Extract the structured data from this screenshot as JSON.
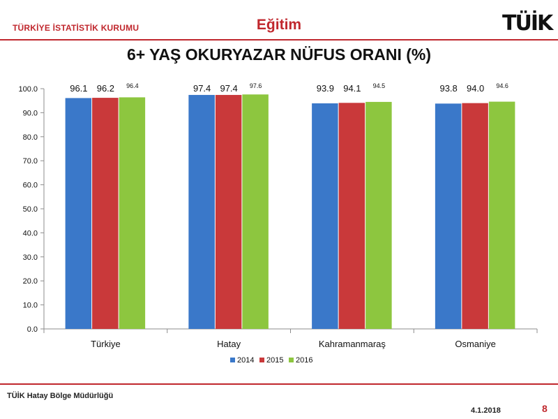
{
  "header": {
    "org_name": "TÜRKİYE İSTATİSTİK KURUMU",
    "section_title": "Eğitim",
    "logo_text": "TÜİK"
  },
  "footer": {
    "org": "TÜİK Hatay Bölge Müdürlüğü",
    "date": "4.1.2018",
    "page_number": "8"
  },
  "chart_data": {
    "type": "bar",
    "title": "6+ YAŞ OKURYAZAR NÜFUS ORANI (%)",
    "xlabel": "",
    "ylabel": "",
    "categories": [
      "Türkiye",
      "Hatay",
      "Kahramanmaraş",
      "Osmaniye"
    ],
    "series": [
      {
        "name": "2014",
        "values": [
          96.1,
          97.4,
          93.9,
          93.8
        ],
        "labels": [
          "96.1",
          "97.4",
          "93.9",
          "93.8"
        ],
        "color": "#3a78c9"
      },
      {
        "name": "2015",
        "values": [
          96.2,
          97.4,
          94.1,
          94.0
        ],
        "labels": [
          "96.2",
          "97.4",
          "94.1",
          "94.0"
        ],
        "color": "#c9393a"
      },
      {
        "name": "2016",
        "values": [
          96.4,
          97.6,
          94.5,
          94.6
        ],
        "labels": [
          "96.4",
          "97.6",
          "94.5",
          "94.6"
        ],
        "color": "#8dc63f"
      }
    ],
    "ylim": [
      0,
      100
    ],
    "yticks": [
      "0.0",
      "10.0",
      "20.0",
      "30.0",
      "40.0",
      "50.0",
      "60.0",
      "70.0",
      "80.0",
      "90.0",
      "100.0"
    ],
    "grid": false,
    "legend_position": "bottom"
  }
}
